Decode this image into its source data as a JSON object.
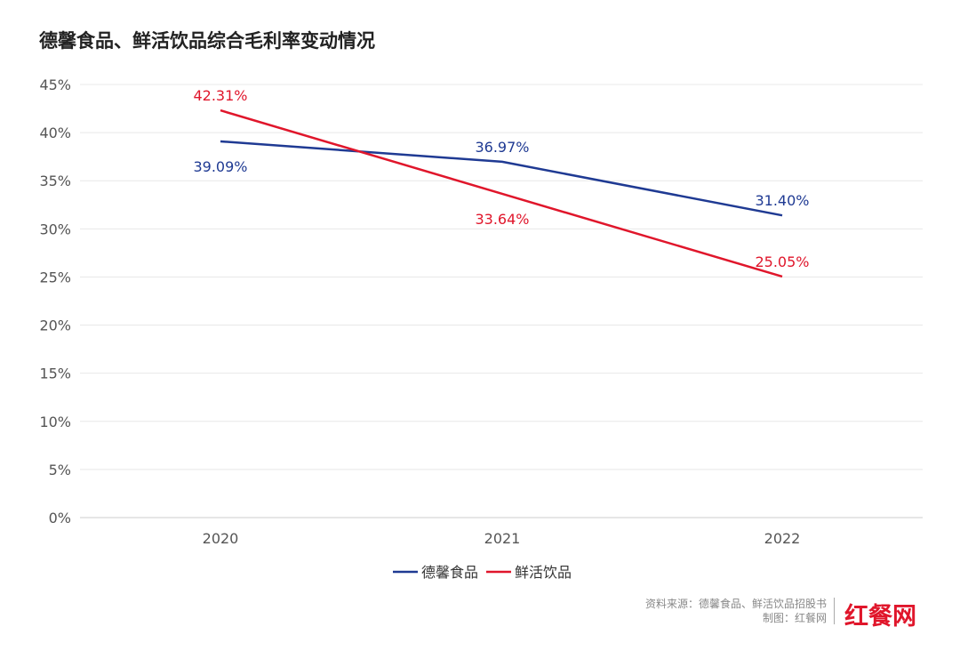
{
  "chart_data": {
    "type": "line",
    "title": "德馨食品、鲜活饮品综合毛利率变动情况",
    "categories": [
      "2020",
      "2021",
      "2022"
    ],
    "series": [
      {
        "name": "德馨食品",
        "values": [
          39.09,
          36.97,
          31.4
        ],
        "labels": [
          "39.09%",
          "36.97%",
          "31.40%"
        ],
        "color": "#1f3a93"
      },
      {
        "name": "鲜活饮品",
        "values": [
          42.31,
          33.64,
          25.05
        ],
        "labels": [
          "42.31%",
          "33.64%",
          "25.05%"
        ],
        "color": "#e0162b"
      }
    ],
    "ylim": [
      0,
      45
    ],
    "yticks": [
      "0%",
      "5%",
      "10%",
      "15%",
      "20%",
      "25%",
      "30%",
      "35%",
      "40%",
      "45%"
    ],
    "grid": true,
    "legend": "bottom"
  },
  "footer": {
    "source": "资料来源：德馨食品、鲜活饮品招股书",
    "credit": "制图：红餐网",
    "logo": "红餐网"
  }
}
